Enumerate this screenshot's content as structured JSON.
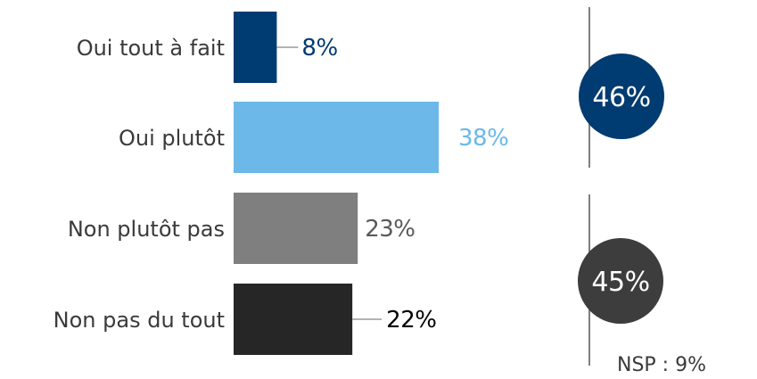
{
  "chart_data": {
    "type": "bar",
    "orientation": "horizontal",
    "title": "",
    "xlabel": "",
    "ylabel": "",
    "xlim": [
      0,
      40
    ],
    "grid": false,
    "categories": [
      "Oui tout à fait",
      "Oui plutôt",
      "Non plutôt pas",
      "Non pas du tout"
    ],
    "values": [
      8,
      38,
      23,
      22
    ],
    "value_labels": [
      "8%",
      "38%",
      "23%",
      "22%"
    ],
    "colors": [
      "#003b71",
      "#6cb8e8",
      "#7f7f7f",
      "#262626"
    ],
    "label_colors": [
      "#003b71",
      "#6cb8e8",
      "#595959",
      "#000000"
    ],
    "groups": [
      {
        "label": "46%",
        "value": 46,
        "color": "#003b71",
        "members": [
          0,
          1
        ]
      },
      {
        "label": "45%",
        "value": 45,
        "color": "#3d3d3d",
        "members": [
          2,
          3
        ]
      }
    ],
    "note": "NSP : 9%"
  }
}
